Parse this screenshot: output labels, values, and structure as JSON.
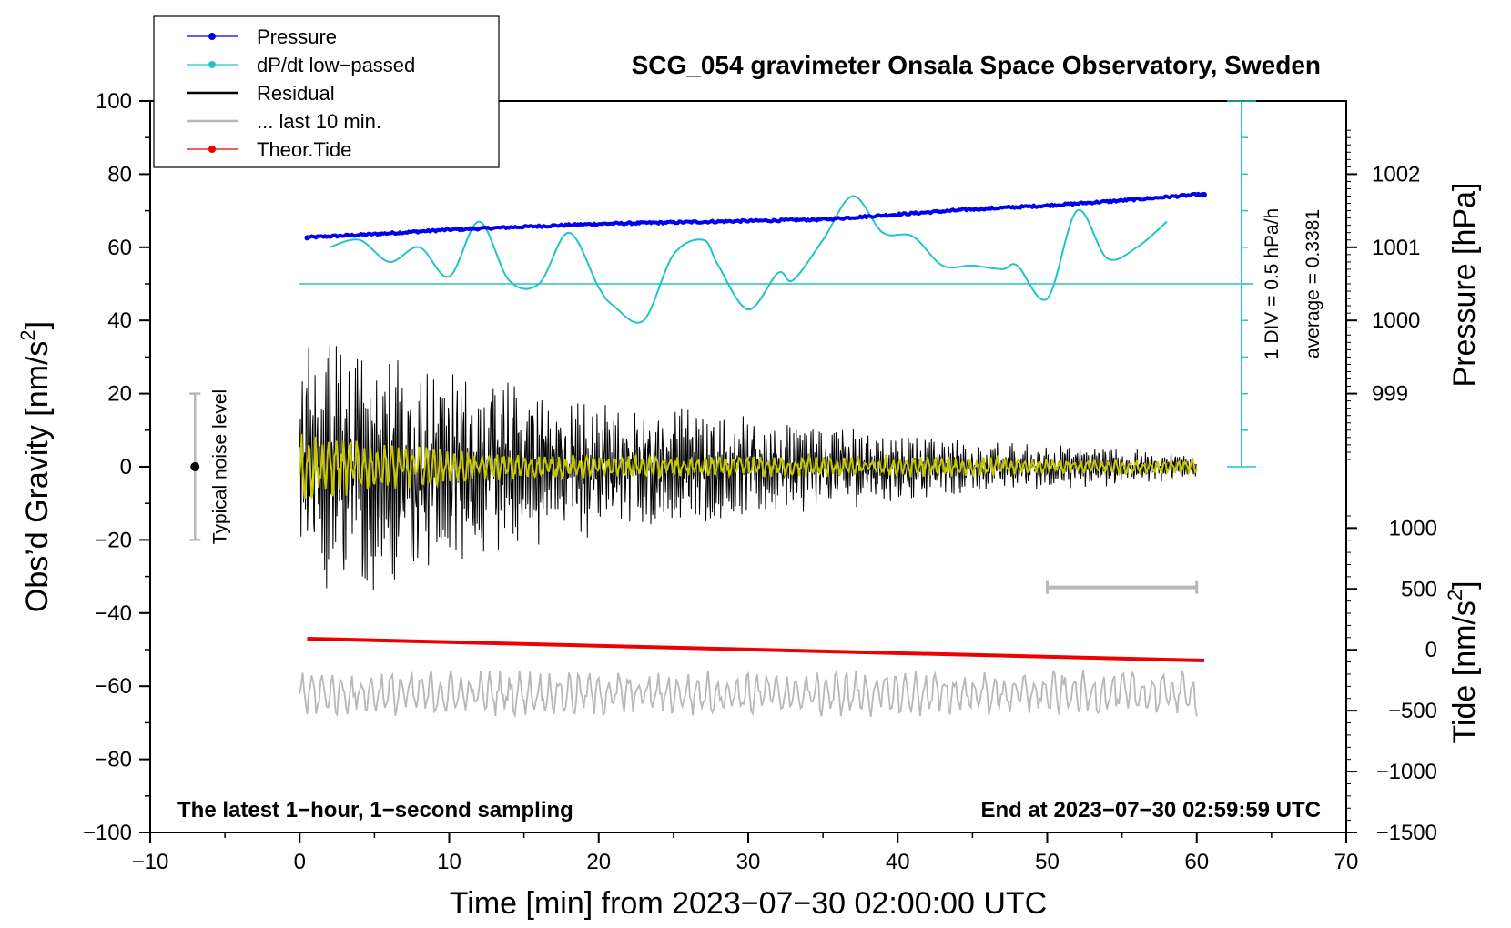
{
  "chart_data": {
    "type": "line",
    "title": "SCG_054 gravimeter Onsala Space Observatory, Sweden",
    "xlabel": "Time [min] from 2023−07−30 02:00:00 UTC",
    "ylabel_left": "Obs’d Gravity [nm/s",
    "ylabel_left_sup": "2",
    "ylabel_left_end": "]",
    "ylabel_right_pressure": "Pressure [hPa]",
    "ylabel_right_tide": "Tide [nm/s",
    "ylabel_right_tide_sup": "2",
    "ylabel_right_tide_end": "]",
    "xlim": [
      -10,
      70
    ],
    "ylim": [
      -100,
      100
    ],
    "x_ticks": [
      -10,
      0,
      10,
      20,
      30,
      40,
      50,
      60,
      70
    ],
    "x_tick_labels": [
      "−10",
      "0",
      "10",
      "20",
      "30",
      "40",
      "50",
      "60",
      "70"
    ],
    "y_ticks": [
      100,
      80,
      60,
      40,
      20,
      0,
      -20,
      -40,
      -60,
      -80,
      -100
    ],
    "y_tick_labels": [
      "100",
      "80",
      "60",
      "40",
      "20",
      "0",
      "−20",
      "−40",
      "−60",
      "−80",
      "−100"
    ],
    "pressure_ticks": [
      1002,
      1001,
      1000,
      999
    ],
    "pressure_tick_labels": [
      "1002",
      "1001",
      "1000",
      "999"
    ],
    "pressure_axis": {
      "hpa_at_gravity_zero": 998,
      "gravity_units_per_hpa": 20
    },
    "tide_ticks": [
      1000,
      500,
      0,
      -500,
      -1000,
      -1500
    ],
    "tide_tick_labels": [
      "1000",
      "500",
      "0",
      "−500",
      "−1000",
      "−1500"
    ],
    "tide_axis": {
      "nm_s2_at_gravity_minus100": -1500,
      "gravity_units_per_1000_nm_s2": 33.3
    },
    "legend": [
      {
        "label": "Pressure",
        "color": "#0000ee",
        "marker": true
      },
      {
        "label": "dP/dt low−passed",
        "color": "#22c4c4",
        "marker": true
      },
      {
        "label": "Residual",
        "color": "#000000",
        "marker": false
      },
      {
        "label": "... last 10 min.",
        "color": "#b8b8b8",
        "marker": false
      },
      {
        "label": "Theor.Tide",
        "color": "#ee0000",
        "marker": true
      }
    ],
    "series": [
      {
        "name": "Pressure",
        "color": "#0000ee",
        "axis": "pressure_hPa",
        "x": [
          0,
          5,
          10,
          15,
          20,
          25,
          30,
          35,
          40,
          45,
          50,
          55,
          60
        ],
        "values": [
          1001.13,
          1001.18,
          1001.24,
          1001.28,
          1001.32,
          1001.34,
          1001.36,
          1001.38,
          1001.45,
          1001.52,
          1001.57,
          1001.64,
          1001.72
        ]
      },
      {
        "name": "dP/dt low-passed",
        "color": "#22c4c4",
        "axis": "gravity_plot_units",
        "zero_line_at": 50,
        "x": [
          2,
          4,
          6,
          8,
          10,
          12,
          14,
          16,
          18,
          20,
          21,
          23,
          25,
          27,
          28,
          30,
          32,
          33,
          35,
          37,
          39,
          41,
          43,
          45,
          47,
          48,
          50,
          52,
          54,
          56,
          58
        ],
        "values": [
          60,
          62,
          56,
          60,
          52,
          67,
          51,
          50,
          64,
          49,
          44,
          40,
          58,
          62,
          55,
          43,
          53,
          51,
          62,
          74,
          64,
          63,
          55,
          55,
          54,
          55,
          46,
          70,
          57,
          60,
          67
        ]
      },
      {
        "name": "Residual",
        "color": "#000000",
        "axis": "gravity_plot_units",
        "envelope_x": [
          0,
          5,
          10,
          15,
          20,
          25,
          30,
          35,
          40,
          45,
          50,
          55,
          60
        ],
        "envelope_amplitude": [
          35,
          33,
          26,
          22,
          18,
          16,
          14,
          12,
          9,
          7,
          6,
          5,
          3
        ]
      },
      {
        "name": "Residual (yellow smoothed)",
        "color": "#c8c800",
        "axis": "gravity_plot_units",
        "envelope_x": [
          0,
          5,
          10,
          15,
          20,
          25,
          30,
          35,
          40,
          45,
          50,
          55,
          60
        ],
        "envelope_amplitude": [
          10,
          7,
          5,
          4,
          3,
          3,
          3,
          3,
          3,
          3,
          2,
          2,
          2
        ]
      },
      {
        "name": "... last 10 min.",
        "color": "#b8b8b8",
        "axis": "gravity_plot_units",
        "baseline": -62,
        "amplitude": 6,
        "x_range": [
          0,
          60
        ]
      },
      {
        "name": "Theor.Tide",
        "color": "#ee0000",
        "axis": "gravity_plot_units",
        "x": [
          0,
          60
        ],
        "values": [
          -47,
          -53
        ]
      }
    ],
    "noise_bar": {
      "label": "Typical noise level",
      "x": -7,
      "center": 0,
      "half_range": 20
    },
    "pressure_scale_bar": {
      "label_1": "1 DIV = 0.5 hPa/h",
      "label_2": "average = 0.3381",
      "x": 63,
      "ymin": 0,
      "ymax": 100,
      "divisions": 10
    },
    "time_bar_10min": {
      "x0": 50,
      "x1": 60,
      "y": -33
    },
    "annotation_left": "The latest 1−hour, 1−second sampling",
    "annotation_right": "End at 2023−07−30 02:59:59 UTC"
  }
}
